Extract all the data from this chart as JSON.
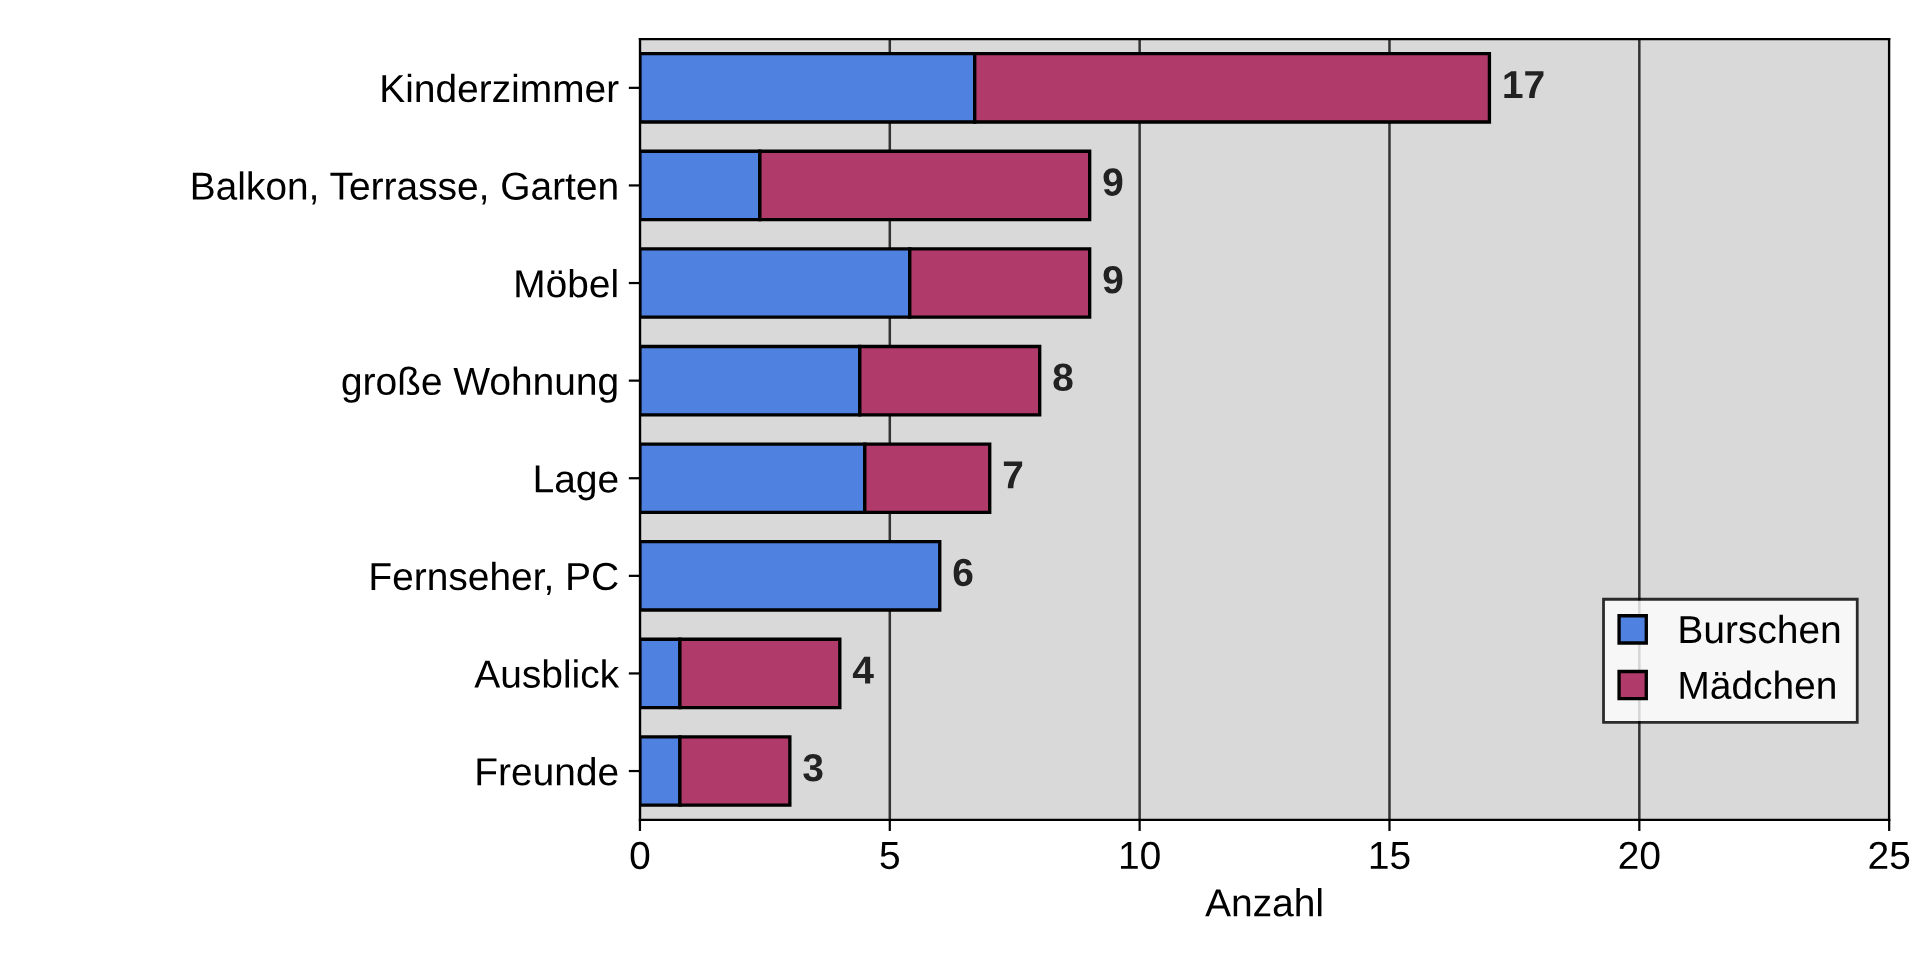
{
  "chart_data": {
    "type": "bar",
    "orientation": "horizontal",
    "stacked": true,
    "xlabel": "Anzahl",
    "categories": [
      "Kinderzimmer",
      "Balkon, Terrasse, Garten",
      "Möbel",
      "große Wohnung",
      "Lage",
      "Fernseher, PC",
      "Ausblick",
      "Freunde"
    ],
    "series": [
      {
        "name": "Burschen",
        "color": "#4f81e0",
        "values": [
          6.7,
          2.4,
          5.4,
          4.4,
          4.5,
          6.0,
          0.8,
          0.8
        ]
      },
      {
        "name": "Mädchen",
        "color": "#b03a6a",
        "values": [
          10.3,
          6.6,
          3.6,
          3.6,
          2.5,
          null,
          3.2,
          2.2
        ]
      }
    ],
    "totals": [
      "17",
      "9",
      "9",
      "8",
      "7",
      "6",
      "4",
      "3"
    ],
    "xlim": [
      0,
      25
    ],
    "xticks": [
      0,
      5,
      10,
      15,
      20,
      25
    ],
    "grid": "x",
    "legend": "bottom right"
  }
}
